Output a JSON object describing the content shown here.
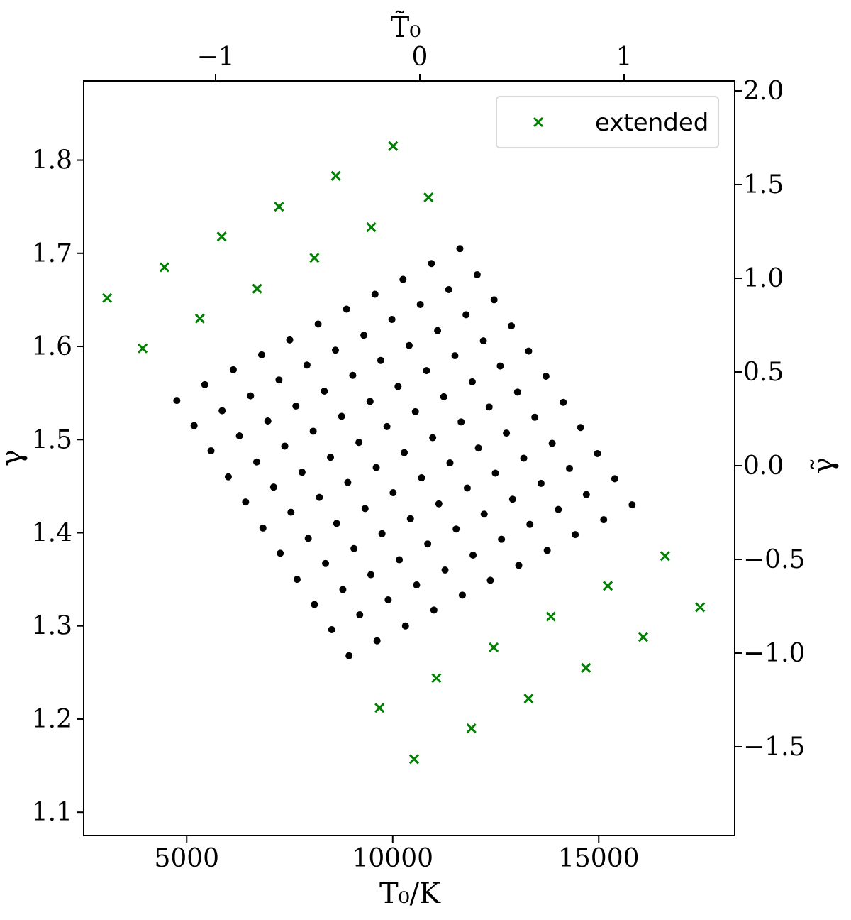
{
  "chart_data": {
    "type": "scatter",
    "xlabel": "T₀/K",
    "ylabel": "γ",
    "top_xlabel": "T̃₀",
    "right_ylabel": "γ̃",
    "xlim": [
      2500,
      18300
    ],
    "ylim": [
      1.075,
      1.885
    ],
    "x_ticks": [
      5000,
      10000,
      15000
    ],
    "x_tick_labels": [
      "5000",
      "10000",
      "15000"
    ],
    "y_ticks": [
      1.1,
      1.2,
      1.3,
      1.4,
      1.5,
      1.6,
      1.7,
      1.8
    ],
    "y_tick_labels": [
      "1.1",
      "1.2",
      "1.3",
      "1.4",
      "1.5",
      "1.6",
      "1.7",
      "1.8"
    ],
    "top_x_ticks": [
      -1,
      0,
      1
    ],
    "top_x_tick_labels": [
      "−1",
      "0",
      "1"
    ],
    "right_y_ticks": [
      -1.5,
      -1.0,
      -0.5,
      0.0,
      0.5,
      1.0,
      1.5,
      2.0
    ],
    "right_y_tick_labels": [
      "−1.5",
      "−1.0",
      "−0.5",
      "0.0",
      "0.5",
      "1.0",
      "1.5",
      "2.0"
    ],
    "legend": {
      "entries": [
        "extended"
      ],
      "placement": "top-right"
    },
    "grid": false,
    "colors": {
      "grid_points": "#000000",
      "extended": "#008000"
    },
    "series": [
      {
        "marker": "dot",
        "x": [
          4760,
          5180,
          5590,
          6010,
          6430,
          6850,
          7270,
          7680,
          8100,
          8520,
          8940,
          5440,
          5860,
          6280,
          6700,
          7110,
          7530,
          7950,
          8370,
          8790,
          9200,
          9620,
          6130,
          6550,
          6970,
          7380,
          7800,
          8220,
          8640,
          9060,
          9470,
          9890,
          10310,
          6820,
          7240,
          7650,
          8070,
          8490,
          8910,
          9330,
          9740,
          10160,
          10580,
          11000,
          7500,
          7920,
          8340,
          8760,
          9180,
          9600,
          10010,
          10430,
          10850,
          11270,
          11690,
          8190,
          8610,
          9030,
          9450,
          9860,
          10280,
          10700,
          11120,
          11540,
          11950,
          12370,
          8880,
          9300,
          9710,
          10130,
          10550,
          10970,
          11390,
          11810,
          12220,
          12640,
          13060,
          9570,
          9980,
          10400,
          10820,
          11240,
          11660,
          12080,
          12490,
          12910,
          13330,
          13750,
          10250,
          10670,
          11090,
          11510,
          11930,
          12340,
          12760,
          13180,
          13600,
          14020,
          14430,
          10940,
          11360,
          11780,
          12200,
          12610,
          13030,
          13450,
          13870,
          14290,
          14700,
          15120,
          11630,
          12050,
          12460,
          12880,
          13300,
          13720,
          14140,
          14560,
          14970,
          15390,
          15810
        ],
        "y": [
          1.542,
          1.515,
          1.488,
          1.46,
          1.433,
          1.405,
          1.378,
          1.35,
          1.323,
          1.296,
          1.268,
          1.559,
          1.531,
          1.504,
          1.476,
          1.449,
          1.422,
          1.394,
          1.367,
          1.339,
          1.312,
          1.284,
          1.575,
          1.547,
          1.52,
          1.493,
          1.465,
          1.438,
          1.41,
          1.383,
          1.355,
          1.328,
          1.3,
          1.591,
          1.564,
          1.536,
          1.509,
          1.481,
          1.454,
          1.426,
          1.399,
          1.371,
          1.344,
          1.317,
          1.607,
          1.58,
          1.552,
          1.525,
          1.497,
          1.47,
          1.443,
          1.415,
          1.388,
          1.36,
          1.333,
          1.624,
          1.596,
          1.569,
          1.541,
          1.514,
          1.486,
          1.459,
          1.431,
          1.404,
          1.376,
          1.349,
          1.64,
          1.612,
          1.585,
          1.557,
          1.53,
          1.502,
          1.475,
          1.448,
          1.42,
          1.393,
          1.365,
          1.656,
          1.629,
          1.601,
          1.574,
          1.546,
          1.519,
          1.491,
          1.464,
          1.436,
          1.409,
          1.381,
          1.672,
          1.645,
          1.617,
          1.59,
          1.562,
          1.535,
          1.507,
          1.48,
          1.453,
          1.425,
          1.398,
          1.689,
          1.661,
          1.634,
          1.606,
          1.579,
          1.551,
          1.524,
          1.496,
          1.469,
          1.441,
          1.414,
          1.705,
          1.677,
          1.65,
          1.622,
          1.595,
          1.568,
          1.54,
          1.513,
          1.485,
          1.458,
          1.43
        ]
      },
      {
        "name": "extended",
        "marker": "x",
        "x": [
          3070,
          4460,
          5850,
          7240,
          8620,
          10010,
          3930,
          5320,
          6710,
          8100,
          9480,
          10870,
          9680,
          11060,
          12450,
          13840,
          15220,
          16610,
          10520,
          11910,
          13300,
          14690,
          16080,
          17460
        ],
        "y": [
          1.652,
          1.685,
          1.718,
          1.75,
          1.783,
          1.815,
          1.598,
          1.63,
          1.662,
          1.695,
          1.728,
          1.76,
          1.212,
          1.244,
          1.277,
          1.31,
          1.343,
          1.375,
          1.157,
          1.19,
          1.222,
          1.255,
          1.288,
          1.32
        ]
      }
    ]
  }
}
